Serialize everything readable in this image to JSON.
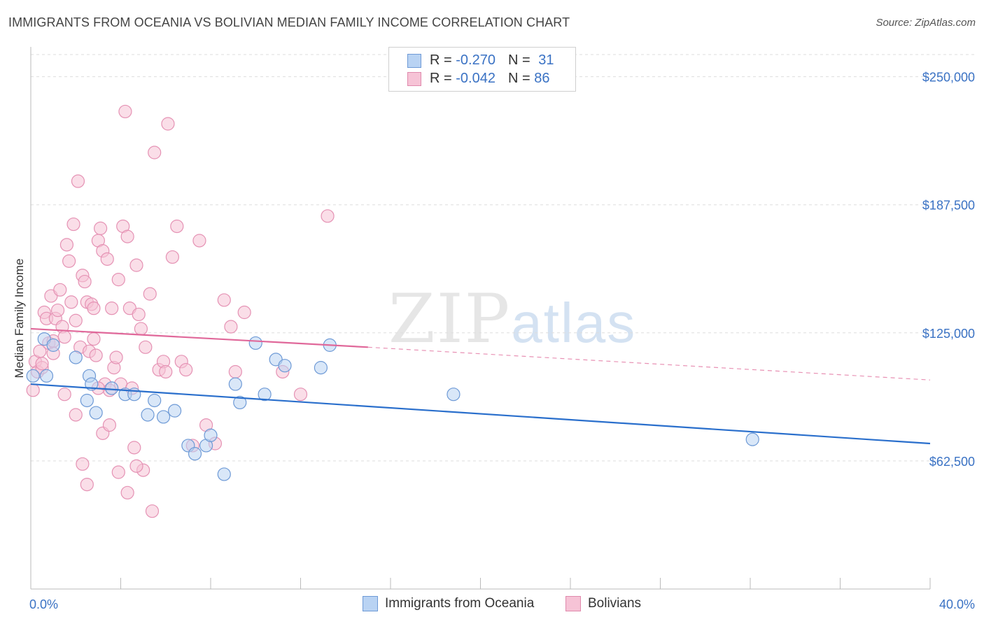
{
  "title": "IMMIGRANTS FROM OCEANIA VS BOLIVIAN MEDIAN FAMILY INCOME CORRELATION CHART",
  "source": "Source: ZipAtlas.com",
  "watermark": {
    "zip": "ZIP",
    "atlas": "atlas"
  },
  "legend": {
    "rows": [
      {
        "r_label": "R = ",
        "r_value": "-0.270",
        "n_label": "N = ",
        "n_value": "31"
      },
      {
        "r_label": "R = ",
        "r_value": "-0.042",
        "n_label": "N = ",
        "n_value": "86"
      }
    ]
  },
  "bottom_legend": {
    "series1": "Immigrants from Oceania",
    "series2": "Bolivians"
  },
  "colors": {
    "blue": "#2a6fcc",
    "blue_fill": "#b9d3f3",
    "pink": "#e0689a",
    "pink_fill": "#f6c3d6",
    "tick": "#3a72c4"
  },
  "chart_data": {
    "type": "scatter",
    "title": "IMMIGRANTS FROM OCEANIA VS BOLIVIAN MEDIAN FAMILY INCOME CORRELATION CHART",
    "xlabel": "",
    "ylabel": "Median Family Income",
    "xlim": [
      0,
      40
    ],
    "ylim": [
      0,
      262500
    ],
    "x_tick_labels": [
      "0.0%",
      "40.0%"
    ],
    "y_ticks": [
      62500,
      125000,
      187500,
      250000
    ],
    "y_tick_labels": [
      "$62,500",
      "$125,000",
      "$187,500",
      "$250,000"
    ],
    "grid": true,
    "series": [
      {
        "name": "Immigrants from Oceania",
        "points": [
          [
            0.1,
            104000
          ],
          [
            0.6,
            122000
          ],
          [
            0.7,
            104000
          ],
          [
            1.0,
            119000
          ],
          [
            2.0,
            113000
          ],
          [
            2.5,
            92000
          ],
          [
            2.6,
            104000
          ],
          [
            2.9,
            86000
          ],
          [
            2.7,
            100000
          ],
          [
            4.2,
            95000
          ],
          [
            4.6,
            95000
          ],
          [
            5.2,
            85000
          ],
          [
            5.5,
            92000
          ],
          [
            5.9,
            84000
          ],
          [
            6.4,
            87000
          ],
          [
            7.0,
            70000
          ],
          [
            7.3,
            66000
          ],
          [
            7.8,
            70000
          ],
          [
            8.0,
            75000
          ],
          [
            8.6,
            56000
          ],
          [
            9.1,
            100000
          ],
          [
            9.3,
            91000
          ],
          [
            10.0,
            120000
          ],
          [
            10.4,
            95000
          ],
          [
            10.9,
            112000
          ],
          [
            11.3,
            109000
          ],
          [
            12.9,
            108000
          ],
          [
            13.3,
            119000
          ],
          [
            18.8,
            95000
          ],
          [
            32.1,
            73000
          ],
          [
            3.6,
            98000
          ]
        ],
        "trend": {
          "x": [
            0,
            40
          ],
          "y": [
            100000,
            71000
          ]
        }
      },
      {
        "name": "Bolivians",
        "points": [
          [
            0.1,
            97000
          ],
          [
            0.2,
            111000
          ],
          [
            0.3,
            106000
          ],
          [
            0.4,
            116000
          ],
          [
            0.5,
            108000
          ],
          [
            0.6,
            135000
          ],
          [
            0.7,
            132000
          ],
          [
            0.8,
            120000
          ],
          [
            0.9,
            143000
          ],
          [
            1.0,
            121000
          ],
          [
            1.1,
            132000
          ],
          [
            1.2,
            136000
          ],
          [
            1.3,
            146000
          ],
          [
            1.4,
            128000
          ],
          [
            1.5,
            123000
          ],
          [
            1.6,
            168000
          ],
          [
            1.7,
            160000
          ],
          [
            1.8,
            140000
          ],
          [
            1.9,
            178000
          ],
          [
            2.0,
            131000
          ],
          [
            2.1,
            199000
          ],
          [
            2.2,
            118000
          ],
          [
            2.3,
            153000
          ],
          [
            2.4,
            150000
          ],
          [
            2.5,
            140000
          ],
          [
            2.6,
            116000
          ],
          [
            2.7,
            139000
          ],
          [
            2.8,
            137000
          ],
          [
            2.9,
            114000
          ],
          [
            3.0,
            170000
          ],
          [
            3.1,
            176000
          ],
          [
            3.2,
            165000
          ],
          [
            3.3,
            100000
          ],
          [
            3.4,
            161000
          ],
          [
            3.5,
            97000
          ],
          [
            3.6,
            137000
          ],
          [
            3.7,
            108000
          ],
          [
            3.8,
            113000
          ],
          [
            3.9,
            151000
          ],
          [
            4.0,
            100000
          ],
          [
            4.1,
            177000
          ],
          [
            4.2,
            233000
          ],
          [
            4.3,
            172000
          ],
          [
            4.4,
            137000
          ],
          [
            4.5,
            98000
          ],
          [
            4.6,
            69000
          ],
          [
            4.7,
            158000
          ],
          [
            4.8,
            134000
          ],
          [
            4.9,
            127000
          ],
          [
            5.0,
            58000
          ],
          [
            5.1,
            118000
          ],
          [
            5.3,
            144000
          ],
          [
            5.5,
            213000
          ],
          [
            5.7,
            107000
          ],
          [
            5.9,
            111000
          ],
          [
            6.1,
            227000
          ],
          [
            6.3,
            162000
          ],
          [
            6.5,
            177000
          ],
          [
            6.7,
            111000
          ],
          [
            6.9,
            107000
          ],
          [
            7.2,
            70000
          ],
          [
            7.5,
            170000
          ],
          [
            7.8,
            80000
          ],
          [
            8.2,
            71000
          ],
          [
            8.6,
            141000
          ],
          [
            8.9,
            128000
          ],
          [
            9.1,
            106000
          ],
          [
            9.5,
            135000
          ],
          [
            11.2,
            106000
          ],
          [
            12.0,
            95000
          ],
          [
            13.2,
            182000
          ],
          [
            2.3,
            61000
          ],
          [
            2.5,
            51000
          ],
          [
            3.2,
            76000
          ],
          [
            3.5,
            80000
          ],
          [
            3.9,
            57000
          ],
          [
            4.3,
            47000
          ],
          [
            4.7,
            60000
          ],
          [
            5.4,
            38000
          ],
          [
            1.5,
            95000
          ],
          [
            2.0,
            85000
          ],
          [
            0.5,
            110000
          ],
          [
            1.0,
            115000
          ],
          [
            3.0,
            98000
          ],
          [
            6.0,
            106000
          ],
          [
            2.8,
            122000
          ]
        ],
        "trend_solid": {
          "x": [
            0,
            15
          ],
          "y": [
            127000,
            118000
          ]
        },
        "trend_dashed": {
          "x": [
            15,
            40
          ],
          "y": [
            118000,
            102000
          ]
        }
      }
    ]
  }
}
